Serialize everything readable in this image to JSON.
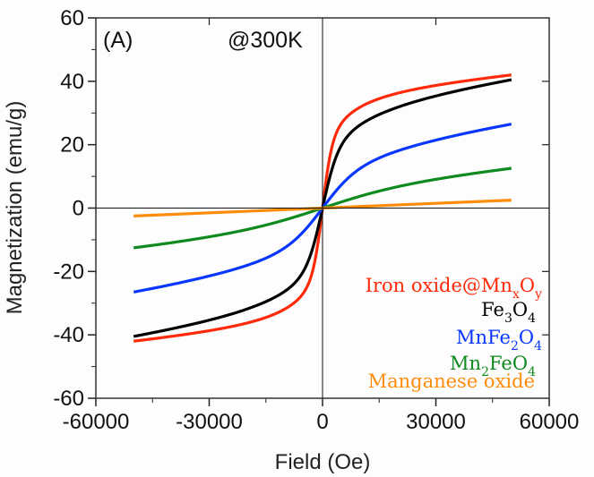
{
  "chart_data": {
    "type": "line",
    "title": "",
    "panel_label": "(A)",
    "annotation": "@300K",
    "xlabel": "Field (Oe)",
    "ylabel": "Magnetization (emu/g)",
    "xlim": [
      -60000,
      60000
    ],
    "ylim": [
      -60,
      60
    ],
    "xticks": [
      -60000,
      -30000,
      0,
      30000,
      60000
    ],
    "xtick_labels": [
      "-60000",
      "-30000",
      "0",
      "30000",
      "60000"
    ],
    "yticks": [
      -60,
      -40,
      -20,
      0,
      20,
      40,
      60
    ],
    "ytick_labels": [
      "-60",
      "-40",
      "-20",
      "0",
      "20",
      "40",
      "60"
    ],
    "grid": false,
    "zero_lines": true,
    "legend_placement": "bottom-right",
    "series": [
      {
        "name": "Iron oxide@MnxOy",
        "label_main": [
          "Iron oxide@Mn",
          "x",
          "O",
          "y"
        ],
        "color": "#ff2a0a",
        "ms": 42.0,
        "sharpness": 2500,
        "linear": 0.00011,
        "x": [
          -50000,
          -30000,
          -10000,
          -3000,
          -1000,
          0,
          1000,
          3000,
          10000,
          30000,
          50000
        ],
        "y": [
          -42,
          -40,
          -37.5,
          -34.5,
          -28,
          0,
          28,
          34.5,
          37.5,
          40,
          42
        ]
      },
      {
        "name": "Fe3O4",
        "label_main": [
          "Fe",
          "3",
          "O",
          "4"
        ],
        "color": "#000000",
        "ms": 40.5,
        "sharpness": 4000,
        "linear": 0.00018,
        "x": [
          -50000,
          -30000,
          -10000,
          -3000,
          -1000,
          0,
          1000,
          3000,
          10000,
          30000,
          50000
        ],
        "y": [
          -40.5,
          -38,
          -33.5,
          -28,
          -20,
          0,
          20,
          28,
          33.5,
          38,
          40.5
        ]
      },
      {
        "name": "MnFe2O4",
        "label_main": [
          "MnFe",
          "2",
          "O",
          "4"
        ],
        "color": "#0a37ff",
        "ms": 26.5,
        "sharpness": 9000,
        "linear": 0.00016,
        "x": [
          -50000,
          -30000,
          -10000,
          -3000,
          -1000,
          0,
          1000,
          3000,
          10000,
          30000,
          50000
        ],
        "y": [
          -26.5,
          -23.5,
          -17,
          -10,
          -4.5,
          0,
          4.5,
          10,
          17,
          23.5,
          26.5
        ]
      },
      {
        "name": "Mn2FeO4",
        "label_main": [
          "Mn",
          "2",
          "FeO",
          "4"
        ],
        "color": "#0f8a1e",
        "ms": 12.5,
        "sharpness": 20000,
        "linear": 0.0001,
        "x": [
          -50000,
          -30000,
          -10000,
          -3000,
          -1000,
          0,
          1000,
          3000,
          10000,
          30000,
          50000
        ],
        "y": [
          -12.5,
          -9.5,
          -5,
          -2,
          -0.7,
          0,
          0.7,
          2,
          5,
          9.5,
          12.5
        ]
      },
      {
        "name": "Manganese oxide",
        "label_main": [
          "Manganese oxide",
          "",
          "",
          ""
        ],
        "color": "#ff8c0a",
        "ms": 2.5,
        "sharpness": 0,
        "linear": 0,
        "x": [
          -50000,
          -30000,
          -10000,
          0,
          10000,
          30000,
          50000
        ],
        "y": [
          -2.5,
          -1.5,
          -0.5,
          0,
          0.5,
          1.5,
          2.5
        ]
      }
    ]
  }
}
